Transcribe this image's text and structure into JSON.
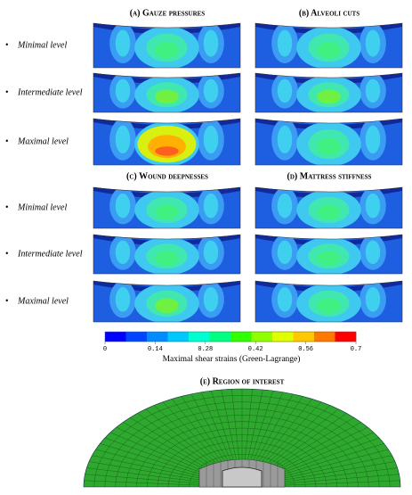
{
  "panels": [
    {
      "title": "(a) Gauze pressures"
    },
    {
      "title": "(b) Alveoli cuts"
    },
    {
      "title": "(c) Wound deepnesses"
    },
    {
      "title": "(d) Mattress stiffness"
    }
  ],
  "rows_top": [
    "Minimal level",
    "Intermediate level",
    "Maximal level"
  ],
  "rows_bottom": [
    "Minimal level",
    "Intermediate level",
    "Maximal level"
  ],
  "colorbar": {
    "lim": [
      0,
      0.7
    ],
    "ticks": [
      0,
      0.14,
      0.28,
      0.42,
      0.56,
      0.7
    ],
    "colors": [
      "#0000ff",
      "#0046ff",
      "#008cff",
      "#00c8ff",
      "#00ffd0",
      "#00ff80",
      "#30ff00",
      "#90ff00",
      "#e0ff00",
      "#ffc800",
      "#ff7800",
      "#ff0000"
    ],
    "label": "Maximal shear strains (Green-Lagrange)"
  },
  "region": {
    "title": "(e) Region of interest"
  }
}
